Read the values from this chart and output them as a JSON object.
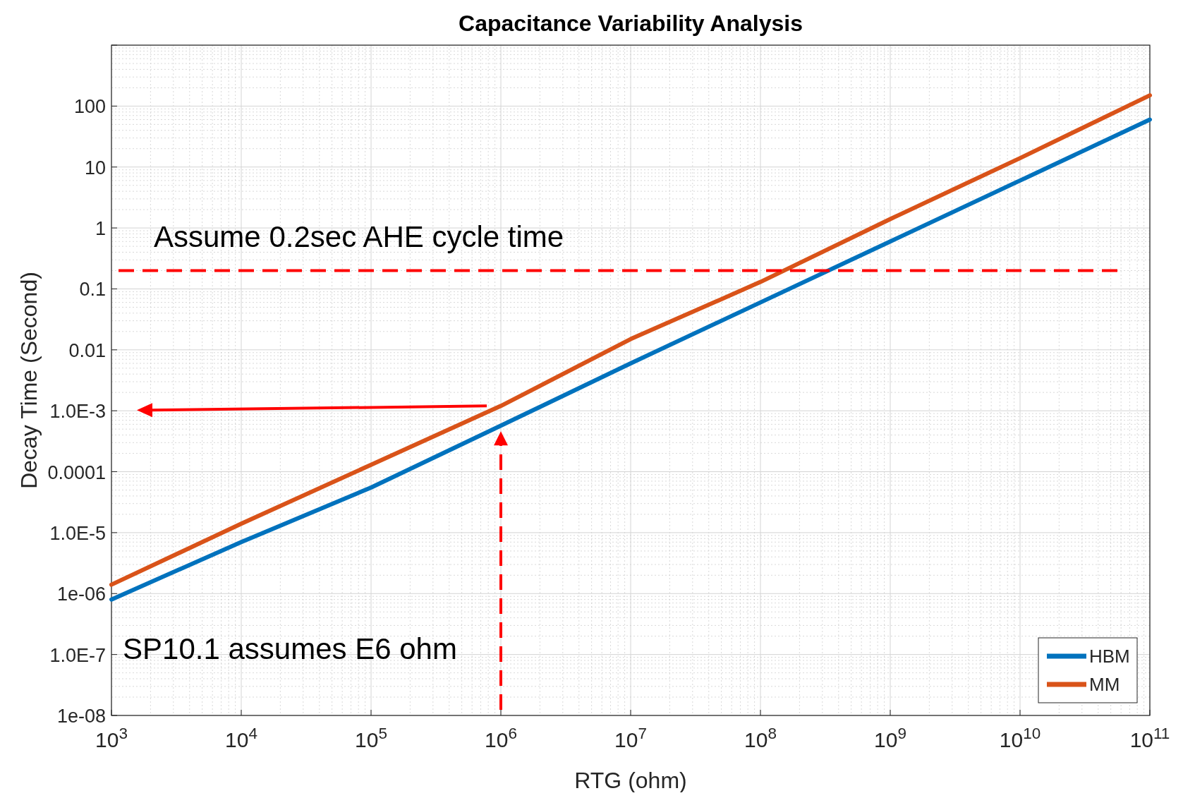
{
  "chart_data": {
    "type": "line",
    "title": "Capacitance Variability Analysis",
    "xlabel": "RTG (ohm)",
    "ylabel": "Decay Time (Second)",
    "log": "xy",
    "grid": true,
    "legend": "bottom right",
    "line_style": "solid",
    "x": [
      1000,
      10000,
      100000,
      1000000,
      10000000,
      100000000,
      1000000000,
      10000000000,
      100000000000
    ],
    "series": [
      {
        "name": "HBM",
        "color": "#0072bd",
        "values": [
          8e-07,
          7e-06,
          5.5e-05,
          0.00057,
          0.006,
          0.06,
          0.6,
          6,
          60
        ]
      },
      {
        "name": "MM",
        "color": "#d95319",
        "values": [
          1.4e-06,
          1.4e-05,
          0.00013,
          0.0012,
          0.015,
          0.13,
          1.4,
          14,
          150
        ]
      }
    ],
    "xlim": [
      1000,
      100000000000
    ],
    "xticks": [
      {
        "value": 1000,
        "label": "10$^{3}$"
      },
      {
        "value": 10000,
        "label": "10$^{4}$"
      },
      {
        "value": 100000,
        "label": "10$^{5}$"
      },
      {
        "value": 1000000,
        "label": "10$^{6}$"
      },
      {
        "value": 10000000,
        "label": "10$^{7}$"
      },
      {
        "value": 100000000,
        "label": "10$^{8}$"
      },
      {
        "value": 1000000000,
        "label": "10$^{9}$"
      },
      {
        "value": 10000000000,
        "label": "10$^{10}$"
      },
      {
        "value": 100000000000,
        "label": "10$^{11}$"
      }
    ],
    "ylim": [
      1e-08,
      1000
    ],
    "yticks": [
      {
        "value": 1e-08,
        "label": "1e-08"
      },
      {
        "value": 1e-07,
        "label": "1.0E-7"
      },
      {
        "value": 1e-06,
        "label": "1e-06"
      },
      {
        "value": 1e-05,
        "label": "1.0E-5"
      },
      {
        "value": 0.0001,
        "label": "0.0001"
      },
      {
        "value": 0.001,
        "label": "1.0E-3"
      },
      {
        "value": 0.01,
        "label": "0.01"
      },
      {
        "value": 0.1,
        "label": "0.1"
      },
      1,
      10,
      100,
      {
        "value": 1000,
        "label": null
      }
    ],
    "ref_lines": [
      {
        "axis": "y",
        "value": 0.2,
        "label": "Assume 0.2sec AHE cycle time",
        "color": "#ff0000",
        "line_style": "dashed"
      },
      {
        "axis": "x",
        "value": 1000000,
        "label": "SP10.1 assumes E6 ohm",
        "color": "#ff0000",
        "line_style": "dashed"
      }
    ]
  }
}
